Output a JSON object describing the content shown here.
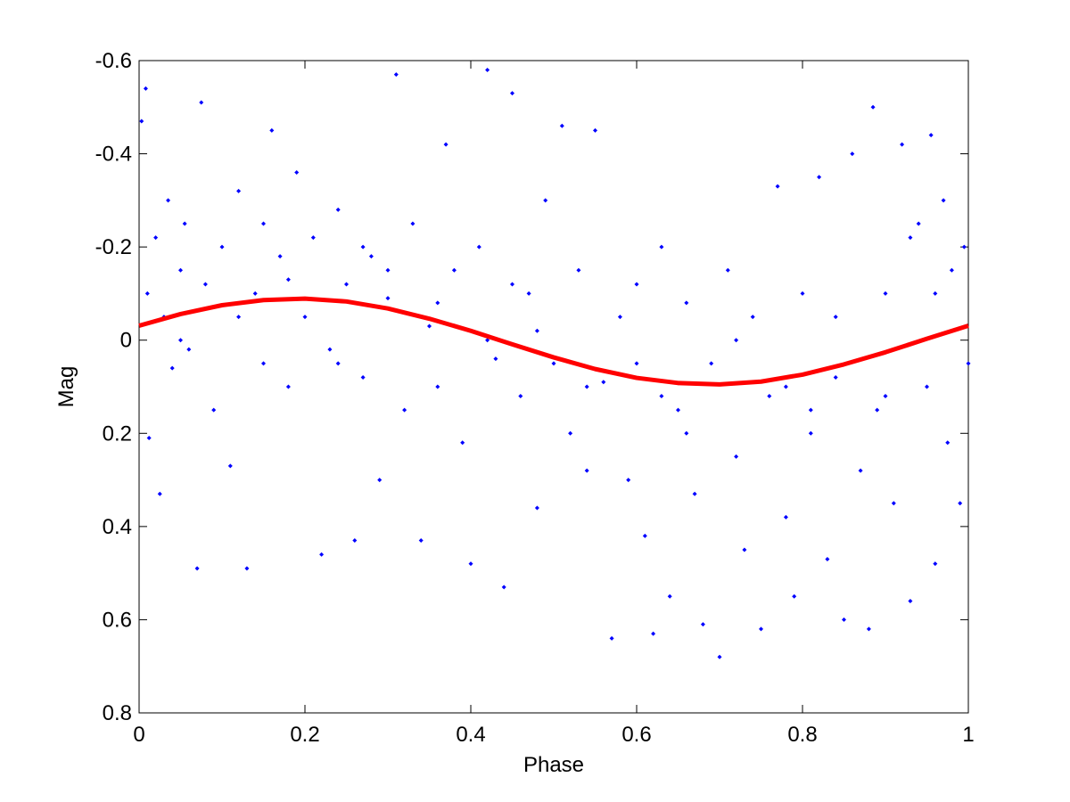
{
  "chart_data": {
    "type": "scatter",
    "xlabel": "Phase",
    "ylabel": "Mag",
    "xlim": [
      0,
      1
    ],
    "ylim": [
      -0.6,
      0.8
    ],
    "y_reversed": true,
    "xticks": [
      0,
      0.2,
      0.4,
      0.6,
      0.8,
      1
    ],
    "yticks": [
      -0.6,
      -0.4,
      -0.2,
      0,
      0.2,
      0.4,
      0.6,
      0.8
    ],
    "series": [
      {
        "type": "scatter",
        "color": "#0000ff",
        "x": [
          0.003,
          0.008,
          0.01,
          0.012,
          0.02,
          0.025,
          0.03,
          0.035,
          0.04,
          0.05,
          0.055,
          0.06,
          0.07,
          0.075,
          0.08,
          0.09,
          0.1,
          0.11,
          0.12,
          0.13,
          0.14,
          0.15,
          0.16,
          0.17,
          0.18,
          0.19,
          0.2,
          0.21,
          0.22,
          0.23,
          0.24,
          0.25,
          0.26,
          0.27,
          0.28,
          0.29,
          0.3,
          0.31,
          0.32,
          0.33,
          0.34,
          0.35,
          0.36,
          0.37,
          0.38,
          0.39,
          0.4,
          0.41,
          0.42,
          0.43,
          0.44,
          0.45,
          0.46,
          0.47,
          0.48,
          0.49,
          0.5,
          0.51,
          0.52,
          0.53,
          0.54,
          0.55,
          0.56,
          0.57,
          0.58,
          0.59,
          0.6,
          0.61,
          0.62,
          0.63,
          0.64,
          0.65,
          0.66,
          0.67,
          0.68,
          0.69,
          0.7,
          0.71,
          0.72,
          0.73,
          0.74,
          0.75,
          0.76,
          0.77,
          0.78,
          0.79,
          0.8,
          0.81,
          0.82,
          0.83,
          0.84,
          0.85,
          0.86,
          0.87,
          0.88,
          0.885,
          0.89,
          0.9,
          0.91,
          0.92,
          0.93,
          0.94,
          0.95,
          0.955,
          0.96,
          0.97,
          0.975,
          0.98,
          0.99,
          0.995,
          1.0,
          0.05,
          0.12,
          0.18,
          0.24,
          0.3,
          0.36,
          0.42,
          0.48,
          0.54,
          0.6,
          0.66,
          0.72,
          0.78,
          0.84,
          0.9,
          0.96,
          0.15,
          0.27,
          0.45,
          0.63,
          0.81,
          0.93
        ],
        "values": [
          -0.47,
          -0.54,
          -0.1,
          0.21,
          -0.22,
          0.33,
          -0.05,
          -0.3,
          0.06,
          -0.15,
          -0.25,
          0.02,
          0.49,
          -0.51,
          -0.12,
          0.15,
          -0.2,
          0.27,
          -0.32,
          0.49,
          -0.1,
          0.05,
          -0.45,
          -0.18,
          0.1,
          -0.36,
          -0.05,
          -0.22,
          0.46,
          0.02,
          -0.28,
          -0.12,
          0.43,
          0.08,
          -0.18,
          0.3,
          -0.09,
          -0.57,
          0.15,
          -0.25,
          0.43,
          -0.03,
          0.1,
          -0.42,
          -0.15,
          0.22,
          0.48,
          -0.2,
          -0.58,
          0.04,
          0.53,
          -0.53,
          0.12,
          -0.1,
          0.36,
          -0.3,
          0.05,
          -0.46,
          0.2,
          -0.15,
          0.28,
          -0.45,
          0.09,
          0.64,
          -0.05,
          0.3,
          -0.12,
          0.42,
          0.63,
          -0.2,
          0.55,
          0.15,
          -0.08,
          0.33,
          0.61,
          0.05,
          0.68,
          -0.15,
          0.25,
          0.45,
          -0.05,
          0.62,
          0.12,
          -0.33,
          0.38,
          0.55,
          -0.1,
          0.2,
          -0.35,
          0.47,
          0.08,
          0.6,
          -0.4,
          0.28,
          0.62,
          -0.5,
          0.15,
          -0.1,
          0.35,
          -0.42,
          0.56,
          -0.25,
          0.1,
          -0.44,
          0.48,
          -0.3,
          0.22,
          -0.15,
          0.35,
          -0.2,
          0.05,
          0.0,
          -0.05,
          -0.13,
          0.05,
          -0.15,
          -0.08,
          0.0,
          -0.02,
          0.1,
          0.05,
          0.2,
          0.0,
          0.1,
          -0.05,
          0.12,
          -0.1,
          -0.25,
          -0.2,
          -0.12,
          0.12,
          0.15,
          -0.22
        ]
      },
      {
        "type": "line",
        "color": "#ff0000",
        "x": [
          0,
          0.05,
          0.1,
          0.15,
          0.2,
          0.25,
          0.3,
          0.35,
          0.4,
          0.45,
          0.5,
          0.55,
          0.6,
          0.65,
          0.7,
          0.75,
          0.8,
          0.85,
          0.9,
          0.95,
          1
        ],
        "values": [
          -0.031,
          -0.056,
          -0.075,
          -0.086,
          -0.089,
          -0.083,
          -0.068,
          -0.046,
          -0.02,
          0.009,
          0.037,
          0.062,
          0.081,
          0.092,
          0.095,
          0.089,
          0.074,
          0.052,
          0.026,
          -0.003,
          -0.031
        ]
      }
    ]
  }
}
